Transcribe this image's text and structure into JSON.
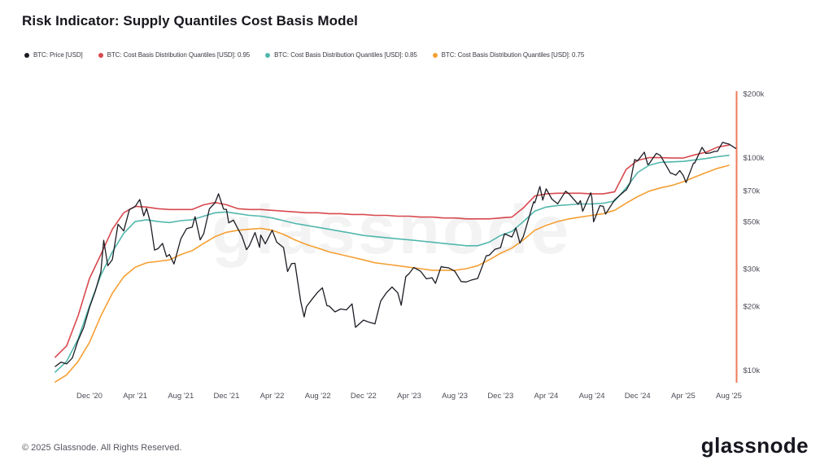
{
  "page": {
    "title": "Risk Indicator: Supply Quantiles Cost Basis Model",
    "watermark": "glassnode",
    "footer": {
      "copyright": "© 2025 Glassnode. All Rights Reserved.",
      "brand": "glassnode"
    }
  },
  "legend": {
    "items": [
      {
        "label": "BTC: Price [USD]",
        "color": "#1c1c24"
      },
      {
        "label": "BTC: Cost Basis Distribution Quantiles [USD]: 0.95",
        "color": "#d8494f"
      },
      {
        "label": "BTC: Cost Basis Distribution Quantiles [USD]: 0.85",
        "color": "#52b7ad"
      },
      {
        "label": "BTC: Cost Basis Distribution Quantiles [USD]: 0.75",
        "color": "#f5a033"
      }
    ]
  },
  "chart_data": {
    "type": "line",
    "title": "Risk Indicator: Supply Quantiles Cost Basis Model",
    "y_scale": "log",
    "y_unit": "thousand USD",
    "ylim_k": [
      8.7,
      200
    ],
    "x_unit": "months since 2020-09",
    "grid": false,
    "legend_position": "top",
    "axis_color": "#ee7b5a",
    "x_ticks": [
      {
        "month_index": 3,
        "label": "Dec '20"
      },
      {
        "month_index": 7,
        "label": "Apr '21"
      },
      {
        "month_index": 11,
        "label": "Aug '21"
      },
      {
        "month_index": 15,
        "label": "Dec '21"
      },
      {
        "month_index": 19,
        "label": "Apr '22"
      },
      {
        "month_index": 23,
        "label": "Aug '22"
      },
      {
        "month_index": 27,
        "label": "Dec '22"
      },
      {
        "month_index": 31,
        "label": "Apr '23"
      },
      {
        "month_index": 35,
        "label": "Aug '23"
      },
      {
        "month_index": 39,
        "label": "Dec '23"
      },
      {
        "month_index": 43,
        "label": "Apr '24"
      },
      {
        "month_index": 47,
        "label": "Aug '24"
      },
      {
        "month_index": 51,
        "label": "Dec '24"
      },
      {
        "month_index": 55,
        "label": "Apr '25"
      },
      {
        "month_index": 59,
        "label": "Aug '25"
      }
    ],
    "y_ticks": [
      {
        "value_k": 10,
        "label": "$10k"
      },
      {
        "value_k": 20,
        "label": "$20k"
      },
      {
        "value_k": 30,
        "label": "$30k"
      },
      {
        "value_k": 50,
        "label": "$50k"
      },
      {
        "value_k": 70,
        "label": "$70k"
      },
      {
        "value_k": 100,
        "label": "$100k"
      },
      {
        "value_k": 200,
        "label": "$200k"
      }
    ],
    "series": [
      {
        "name": "BTC: Price [USD]",
        "color": "#1c1c24",
        "width": 1.3,
        "points_k_usd": [
          [
            0,
            10.4
          ],
          [
            0.5,
            10.9
          ],
          [
            1,
            10.7
          ],
          [
            1.5,
            11.4
          ],
          [
            2,
            13.8
          ],
          [
            2.5,
            15.9
          ],
          [
            3,
            19.7
          ],
          [
            3.5,
            23.4
          ],
          [
            4,
            29.0
          ],
          [
            4.25,
            40.8
          ],
          [
            4.6,
            31.0
          ],
          [
            5,
            33.1
          ],
          [
            5.5,
            48.6
          ],
          [
            6,
            45.2
          ],
          [
            6.5,
            57.0
          ],
          [
            7,
            58.8
          ],
          [
            7.4,
            63.5
          ],
          [
            7.75,
            53.2
          ],
          [
            8,
            57.7
          ],
          [
            8.35,
            49.1
          ],
          [
            8.7,
            36.7
          ],
          [
            9,
            37.3
          ],
          [
            9.4,
            39.5
          ],
          [
            9.75,
            34.2
          ],
          [
            10,
            35.0
          ],
          [
            10.4,
            31.6
          ],
          [
            11,
            41.5
          ],
          [
            11.5,
            46.3
          ],
          [
            12,
            47.1
          ],
          [
            12.25,
            52.7
          ],
          [
            12.7,
            41.0
          ],
          [
            13,
            43.8
          ],
          [
            13.5,
            57.4
          ],
          [
            14,
            61.3
          ],
          [
            14.3,
            67.6
          ],
          [
            14.75,
            57.2
          ],
          [
            15,
            57.0
          ],
          [
            15.2,
            49.3
          ],
          [
            15.6,
            50.8
          ],
          [
            16,
            46.2
          ],
          [
            16.35,
            42.7
          ],
          [
            16.75,
            36.9
          ],
          [
            17,
            38.5
          ],
          [
            17.5,
            44.4
          ],
          [
            17.9,
            37.8
          ],
          [
            18,
            43.2
          ],
          [
            18.4,
            39.3
          ],
          [
            19,
            45.5
          ],
          [
            19.4,
            40.0
          ],
          [
            20,
            37.7
          ],
          [
            20.35,
            29.1
          ],
          [
            20.7,
            31.7
          ],
          [
            21,
            31.8
          ],
          [
            21.5,
            21.0
          ],
          [
            21.8,
            17.8
          ],
          [
            22,
            19.9
          ],
          [
            22.5,
            21.6
          ],
          [
            23,
            23.3
          ],
          [
            23.4,
            24.4
          ],
          [
            23.8,
            20.1
          ],
          [
            24,
            20.0
          ],
          [
            24.5,
            18.8
          ],
          [
            25,
            19.4
          ],
          [
            25.5,
            19.2
          ],
          [
            26,
            20.5
          ],
          [
            26.3,
            15.9
          ],
          [
            27,
            17.2
          ],
          [
            27.5,
            16.8
          ],
          [
            28,
            16.5
          ],
          [
            28.5,
            21.1
          ],
          [
            29,
            23.1
          ],
          [
            29.5,
            24.6
          ],
          [
            30,
            23.1
          ],
          [
            30.3,
            20.2
          ],
          [
            30.7,
            27.5
          ],
          [
            31,
            28.5
          ],
          [
            31.4,
            30.4
          ],
          [
            32,
            29.2
          ],
          [
            32.5,
            26.9
          ],
          [
            33,
            27.2
          ],
          [
            33.3,
            25.6
          ],
          [
            33.8,
            30.7
          ],
          [
            34,
            30.5
          ],
          [
            34.45,
            30.3
          ],
          [
            35,
            29.2
          ],
          [
            35.55,
            26.1
          ],
          [
            36,
            26.0
          ],
          [
            36.5,
            26.6
          ],
          [
            37,
            27.0
          ],
          [
            37.75,
            34.5
          ],
          [
            38,
            34.7
          ],
          [
            38.5,
            37.0
          ],
          [
            39,
            37.7
          ],
          [
            39.35,
            43.8
          ],
          [
            40,
            42.3
          ],
          [
            40.35,
            46.7
          ],
          [
            40.7,
            39.6
          ],
          [
            41,
            42.6
          ],
          [
            41.9,
            62.0
          ],
          [
            42,
            61.2
          ],
          [
            42.45,
            73.1
          ],
          [
            42.7,
            63.1
          ],
          [
            43,
            71.3
          ],
          [
            43.5,
            63.8
          ],
          [
            44,
            60.6
          ],
          [
            44.7,
            69.5
          ],
          [
            45,
            67.5
          ],
          [
            45.8,
            60.3
          ],
          [
            46,
            62.7
          ],
          [
            46.2,
            55.9
          ],
          [
            46.9,
            68.3
          ],
          [
            47,
            64.6
          ],
          [
            47.15,
            49.9
          ],
          [
            47.7,
            59.4
          ],
          [
            48,
            59.0
          ],
          [
            48.2,
            54.2
          ],
          [
            49,
            63.3
          ],
          [
            49.9,
            69.9
          ],
          [
            50,
            70.2
          ],
          [
            50.35,
            76.0
          ],
          [
            50.75,
            98.0
          ],
          [
            51,
            96.4
          ],
          [
            51.6,
            106.1
          ],
          [
            51.9,
            92.7
          ],
          [
            52,
            93.4
          ],
          [
            52.65,
            104.8
          ],
          [
            53,
            102.4
          ],
          [
            53.9,
            84.3
          ],
          [
            54,
            84.4
          ],
          [
            54.35,
            82.6
          ],
          [
            54.7,
            86.9
          ],
          [
            55,
            82.5
          ],
          [
            55.25,
            76.3
          ],
          [
            55.9,
            94.2
          ],
          [
            56,
            94.2
          ],
          [
            56.65,
            111.7
          ],
          [
            57,
            104.6
          ],
          [
            57.35,
            105.1
          ],
          [
            57.75,
            107.0
          ],
          [
            58,
            107.1
          ],
          [
            58.45,
            118.0
          ],
          [
            58.8,
            116.5
          ],
          [
            59,
            115.8
          ],
          [
            59.3,
            113.1
          ],
          [
            59.6,
            110.5
          ]
        ]
      },
      {
        "name": "BTC: Cost Basis Distribution Quantiles [USD]: 0.95",
        "color": "#d8494f",
        "width": 1.6,
        "values_k_usd": [
          11.5,
          13.0,
          18.0,
          27.0,
          35.0,
          46.0,
          55.0,
          59.0,
          58.5,
          57.5,
          57.0,
          57.0,
          57.0,
          60.0,
          61.5,
          60.0,
          57.5,
          57.0,
          57.0,
          56.5,
          56.0,
          55.5,
          55.0,
          55.0,
          54.5,
          54.5,
          54.0,
          54.0,
          53.5,
          53.5,
          53.0,
          53.0,
          52.5,
          52.5,
          52.0,
          52.0,
          51.5,
          51.5,
          51.5,
          52.0,
          52.5,
          58.0,
          66.0,
          67.5,
          68.0,
          68.0,
          68.0,
          67.5,
          67.5,
          69.0,
          88.0,
          97.0,
          100.0,
          100.0,
          99.5,
          99.5,
          103.0,
          106.0,
          112.0,
          114.5
        ]
      },
      {
        "name": "BTC: Cost Basis Distribution Quantiles [USD]: 0.85",
        "color": "#52b7ad",
        "width": 1.6,
        "values_k_usd": [
          9.8,
          11.0,
          14.0,
          20.0,
          28.0,
          36.0,
          44.0,
          50.0,
          51.0,
          50.0,
          49.5,
          50.5,
          51.0,
          53.0,
          55.0,
          55.5,
          54.5,
          53.5,
          53.0,
          52.0,
          50.5,
          49.0,
          48.0,
          47.0,
          46.0,
          45.0,
          44.0,
          43.0,
          42.5,
          42.0,
          41.5,
          41.0,
          40.5,
          40.0,
          39.5,
          39.0,
          38.5,
          38.5,
          40.0,
          43.0,
          45.0,
          50.0,
          56.0,
          58.5,
          59.5,
          60.0,
          60.5,
          60.5,
          61.0,
          62.5,
          72.0,
          85.0,
          92.0,
          95.0,
          95.5,
          96.0,
          97.5,
          99.0,
          101.0,
          102.5
        ]
      },
      {
        "name": "BTC: Cost Basis Distribution Quantiles [USD]: 0.75",
        "color": "#f5a033",
        "width": 1.6,
        "values_k_usd": [
          8.8,
          9.5,
          11.0,
          13.5,
          18.0,
          23.0,
          27.5,
          30.5,
          32.0,
          32.5,
          33.0,
          35.0,
          36.5,
          39.5,
          42.5,
          44.5,
          45.5,
          46.0,
          46.5,
          45.5,
          43.5,
          41.0,
          39.0,
          37.5,
          36.0,
          35.0,
          34.0,
          33.0,
          32.0,
          31.5,
          31.0,
          30.5,
          30.0,
          29.5,
          29.5,
          29.5,
          30.0,
          31.0,
          33.0,
          35.5,
          37.5,
          41.0,
          45.5,
          48.0,
          50.0,
          51.5,
          52.5,
          53.5,
          54.5,
          56.5,
          61.0,
          65.5,
          69.5,
          72.0,
          74.0,
          77.0,
          81.0,
          85.0,
          89.0,
          92.0
        ]
      }
    ]
  }
}
